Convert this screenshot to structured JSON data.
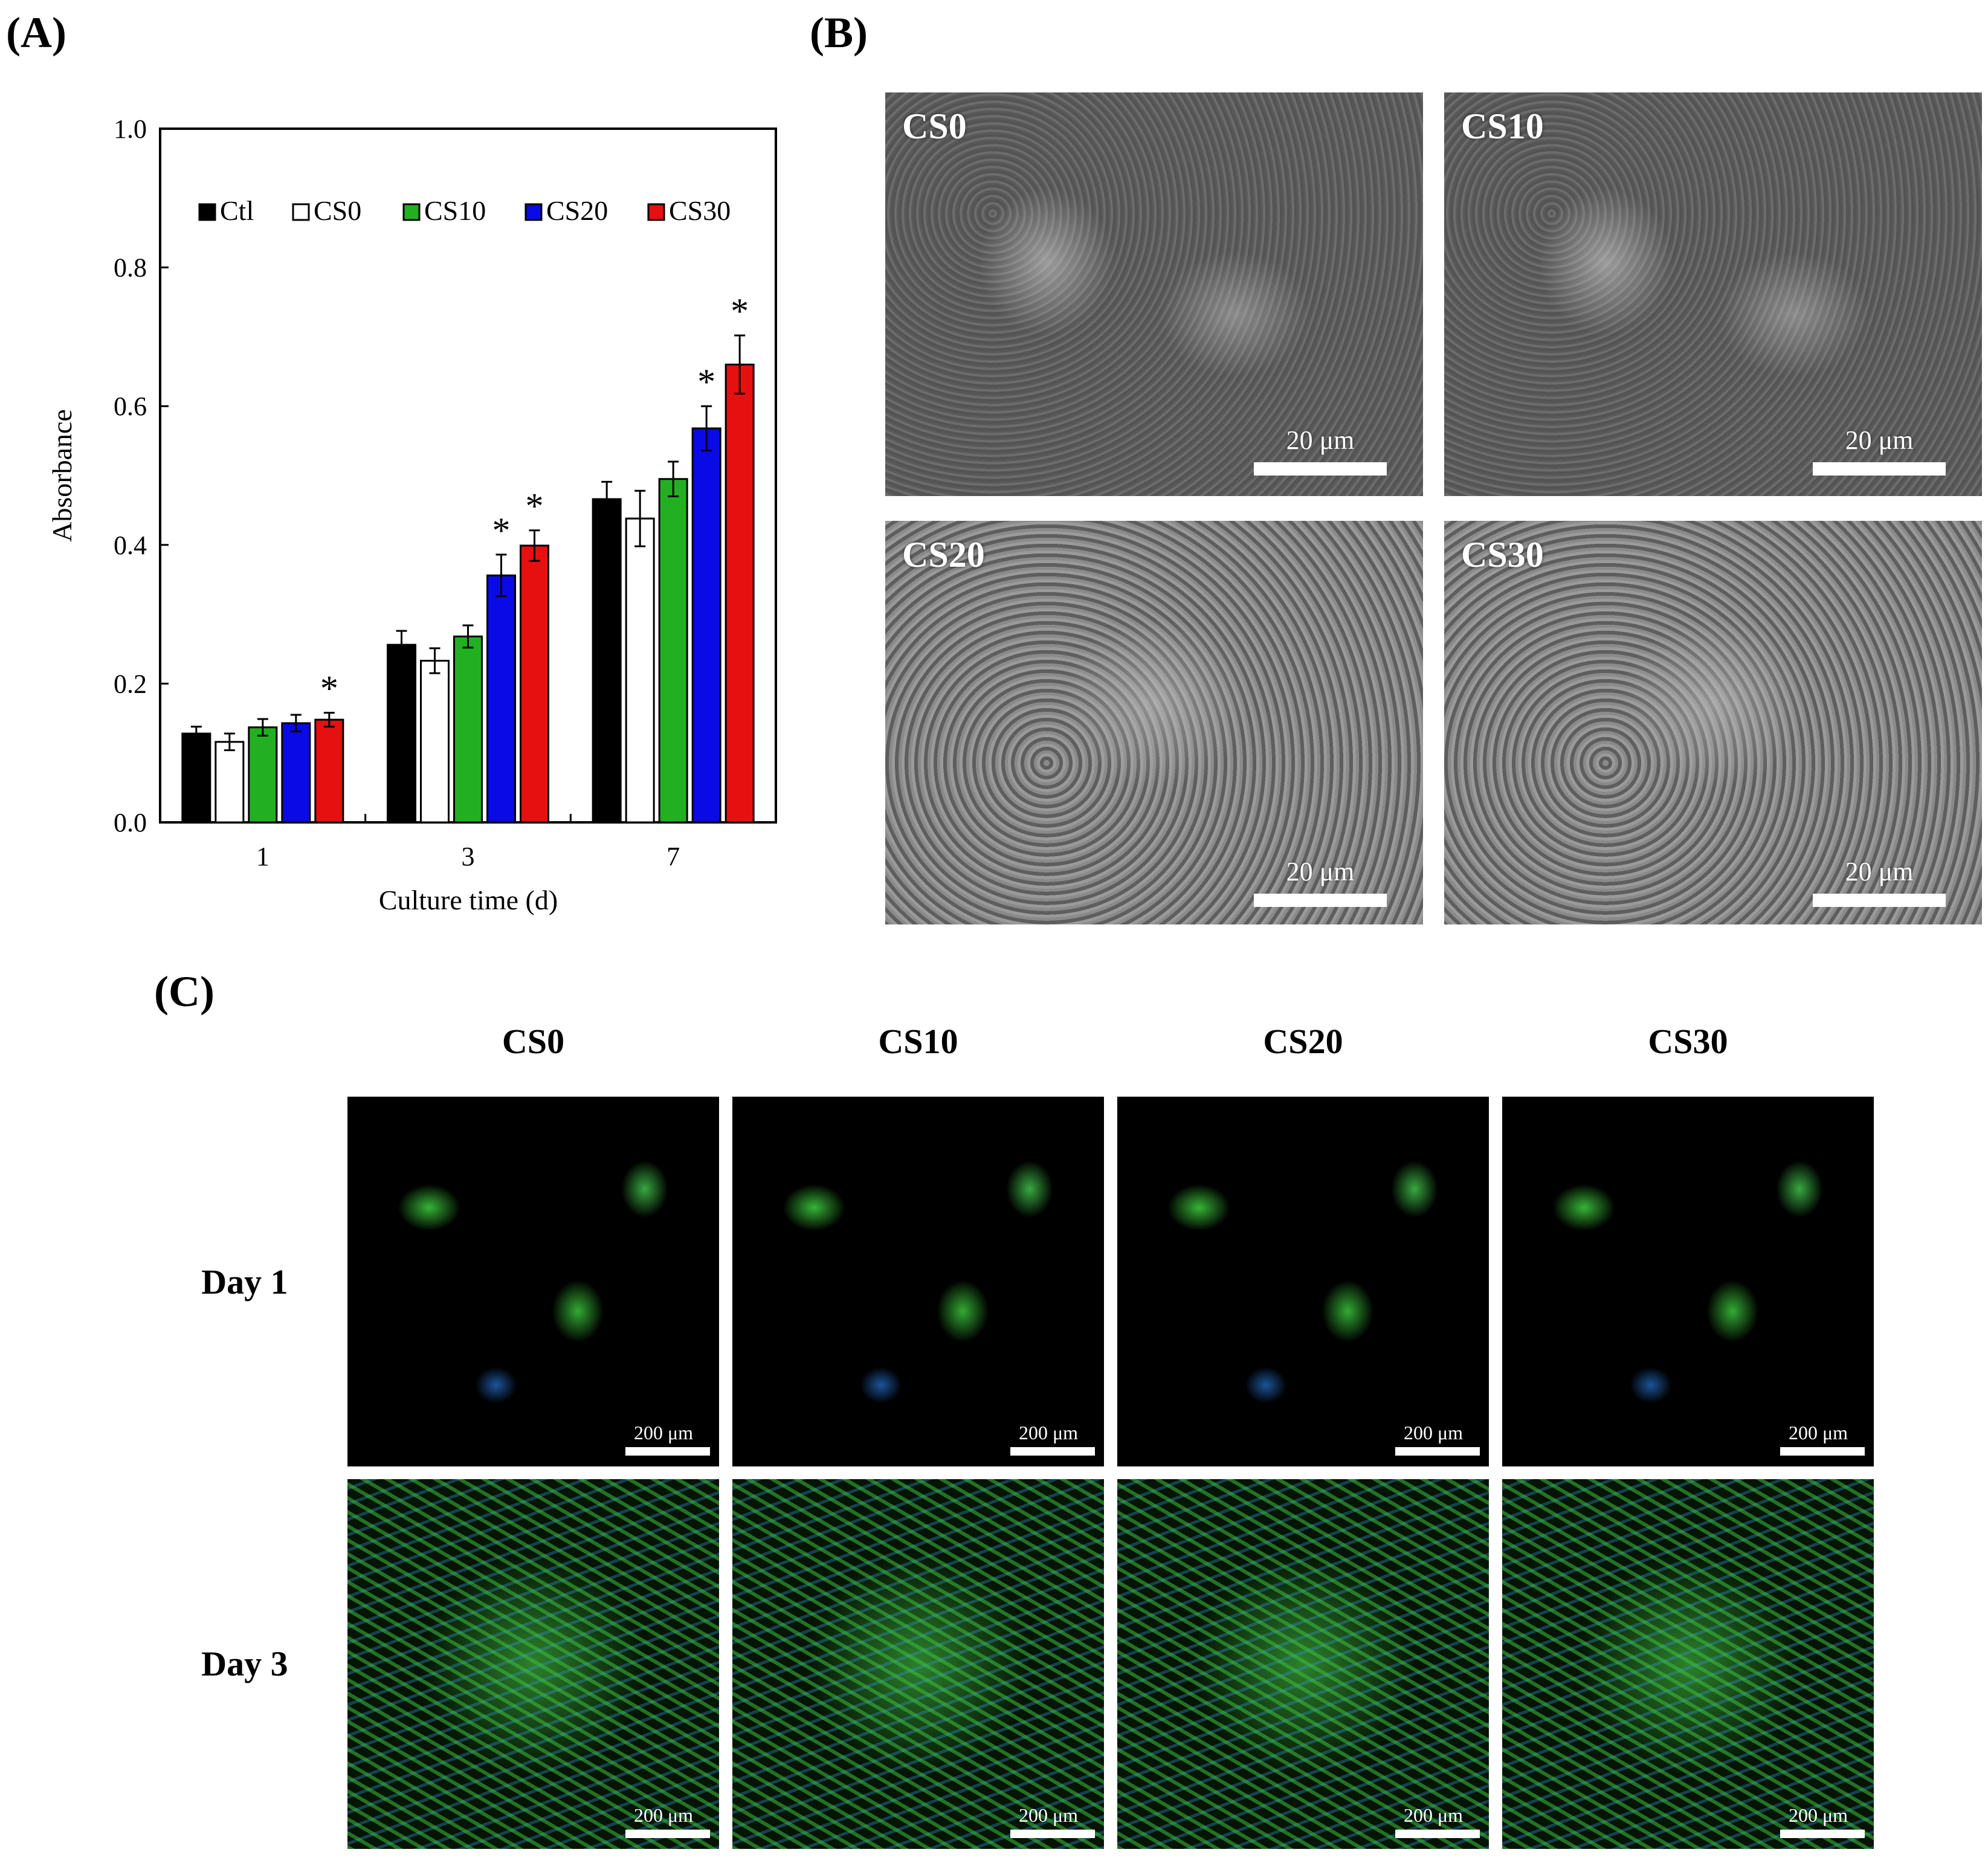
{
  "panels": {
    "a_label": "(A)",
    "b_label": "(B)",
    "c_label": "(C)"
  },
  "chart_data": {
    "type": "bar",
    "title": "",
    "xlabel": "Culture time (d)",
    "ylabel": "Absorbance",
    "ylim": [
      0,
      1.0
    ],
    "yticks": [
      "0.0",
      "0.2",
      "0.4",
      "0.6",
      "0.8",
      "1.0"
    ],
    "categories": [
      "1",
      "3",
      "7"
    ],
    "legend_position": "top",
    "series": [
      {
        "name": "Ctl",
        "color": "#000000",
        "values": [
          0.128,
          0.256,
          0.466
        ],
        "errors": [
          0.01,
          0.02,
          0.025
        ],
        "sig": [
          false,
          false,
          false
        ]
      },
      {
        "name": "CS0",
        "color": "#ffffff",
        "values": [
          0.116,
          0.233,
          0.438
        ],
        "errors": [
          0.012,
          0.018,
          0.04
        ],
        "sig": [
          false,
          false,
          false
        ]
      },
      {
        "name": "CS10",
        "color": "#22b022",
        "values": [
          0.137,
          0.268,
          0.495
        ],
        "errors": [
          0.012,
          0.016,
          0.025
        ],
        "sig": [
          false,
          false,
          false
        ]
      },
      {
        "name": "CS20",
        "color": "#0a0ae6",
        "values": [
          0.143,
          0.356,
          0.568
        ],
        "errors": [
          0.012,
          0.03,
          0.032
        ],
        "sig": [
          false,
          true,
          true
        ]
      },
      {
        "name": "CS30",
        "color": "#e61010",
        "values": [
          0.148,
          0.399,
          0.66
        ],
        "errors": [
          0.01,
          0.022,
          0.042
        ],
        "sig": [
          true,
          true,
          true
        ]
      }
    ],
    "sig_marker": "*"
  },
  "sem": {
    "scale_label": "20 μm",
    "images": [
      {
        "label": "CS0"
      },
      {
        "label": "CS10"
      },
      {
        "label": "CS20"
      },
      {
        "label": "CS30"
      }
    ]
  },
  "fluorescence": {
    "columns": [
      "CS0",
      "CS10",
      "CS20",
      "CS30"
    ],
    "rows": [
      "Day 1",
      "Day 3"
    ],
    "scale_label": "200 μm"
  }
}
